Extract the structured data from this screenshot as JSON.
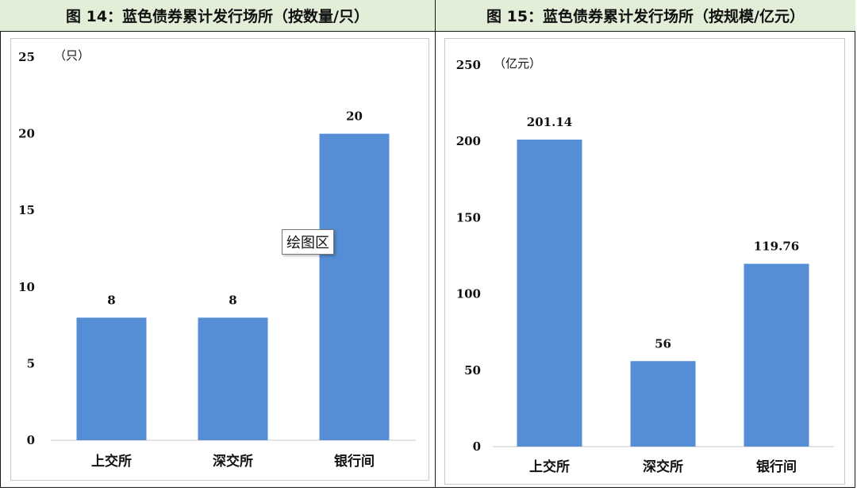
{
  "chart_data": [
    {
      "type": "bar",
      "title": "图 14：蓝色债券累计发行场所（按数量/只）",
      "unit": "（只）",
      "categories": [
        "上交所",
        "深交所",
        "银行间"
      ],
      "values": [
        8,
        8,
        20
      ],
      "data_labels": [
        "8",
        "8",
        "20"
      ],
      "yticks": [
        0,
        5,
        10,
        15,
        20,
        25
      ],
      "ylim": [
        0,
        25
      ],
      "bar_color": "#558ed5",
      "grid": false,
      "legend": "none"
    },
    {
      "type": "bar",
      "title": "图 15：蓝色债券累计发行场所（按规模/亿元）",
      "unit": "（亿元）",
      "categories": [
        "上交所",
        "深交所",
        "银行间"
      ],
      "values": [
        201.14,
        56,
        119.76
      ],
      "data_labels": [
        "201.14",
        "56",
        "119.76"
      ],
      "yticks": [
        0,
        50,
        100,
        150,
        200,
        250
      ],
      "ylim": [
        0,
        250
      ],
      "bar_color": "#558ed5",
      "grid": false,
      "legend": "none"
    }
  ],
  "tooltip": {
    "text": "绘图区"
  },
  "colors": {
    "header_bg": "#e3eed9",
    "border": "#1a1a1a",
    "axis": "#c8c8c8"
  }
}
